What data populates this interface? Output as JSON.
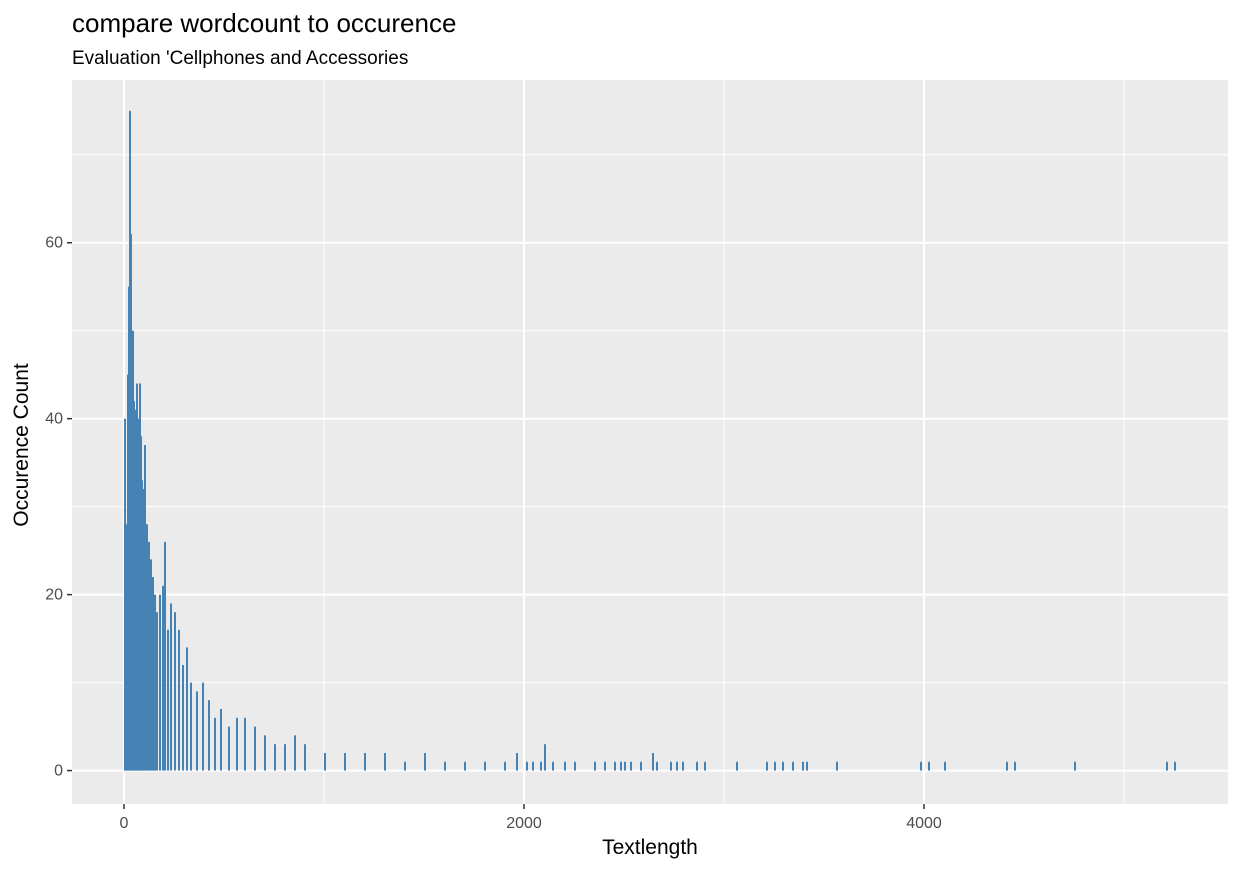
{
  "chart_data": {
    "type": "bar",
    "title": "compare wordcount to occurence",
    "subtitle": "Evaluation 'Cellphones and Accessories",
    "xlabel": "Textlength",
    "ylabel": "Occurence Count",
    "xlim": [
      -260,
      5520
    ],
    "ylim": [
      -3.8,
      78.5
    ],
    "x_ticks": [
      0,
      2000,
      4000
    ],
    "x_tick_labels": [
      "0",
      "2000",
      "4000"
    ],
    "x_minor_ticks": [
      1000,
      3000,
      5000
    ],
    "y_ticks": [
      0,
      20,
      40,
      60
    ],
    "y_tick_labels": [
      "0",
      "20",
      "40",
      "60"
    ],
    "y_minor_ticks": [
      10,
      30,
      50,
      70
    ],
    "grid": true,
    "bar_color": "#4682B4",
    "panel_color": "#EBEBEB",
    "grid_color": "#FFFFFF",
    "series": [
      {
        "x": [
          0,
          5,
          10,
          15,
          20,
          25,
          30,
          35,
          40,
          45,
          50,
          55,
          60,
          65,
          70,
          75,
          80,
          85,
          90,
          95,
          100,
          110,
          120,
          130,
          140,
          150,
          160,
          175,
          190,
          200,
          215,
          230,
          250,
          270,
          290,
          310,
          330,
          360,
          390,
          420,
          450,
          480,
          520,
          560,
          600,
          650,
          700,
          750,
          800,
          850,
          900,
          1000,
          1100,
          1200,
          1300,
          1400,
          1500,
          1600,
          1700,
          1800,
          1900,
          1960,
          2010,
          2040,
          2080,
          2100,
          2140,
          2200,
          2250,
          2350,
          2400,
          2450,
          2480,
          2500,
          2530,
          2580,
          2640,
          2660,
          2730,
          2760,
          2790,
          2860,
          2900,
          3060,
          3210,
          3250,
          3290,
          3340,
          3390,
          3410,
          3560,
          3980,
          4020,
          4100,
          4410,
          4450,
          4750,
          5210,
          5250
        ],
        "y": [
          40,
          2,
          28,
          45,
          55,
          75,
          61,
          48,
          50,
          42,
          38,
          41,
          44,
          36,
          40,
          44,
          38,
          33,
          32,
          30,
          37,
          28,
          26,
          24,
          22,
          20,
          18,
          20,
          21,
          26,
          16,
          19,
          18,
          16,
          12,
          14,
          10,
          9,
          10,
          8,
          6,
          7,
          5,
          6,
          6,
          5,
          4,
          3,
          3,
          4,
          3,
          2,
          2,
          2,
          2,
          1,
          2,
          1,
          1,
          1,
          1,
          2,
          1,
          1,
          1,
          3,
          1,
          1,
          1,
          1,
          1,
          1,
          1,
          1,
          1,
          1,
          2,
          1,
          1,
          1,
          1,
          1,
          1,
          1,
          1,
          1,
          1,
          1,
          1,
          1,
          1,
          1,
          1,
          1,
          1,
          1,
          1,
          1,
          1
        ]
      }
    ]
  }
}
